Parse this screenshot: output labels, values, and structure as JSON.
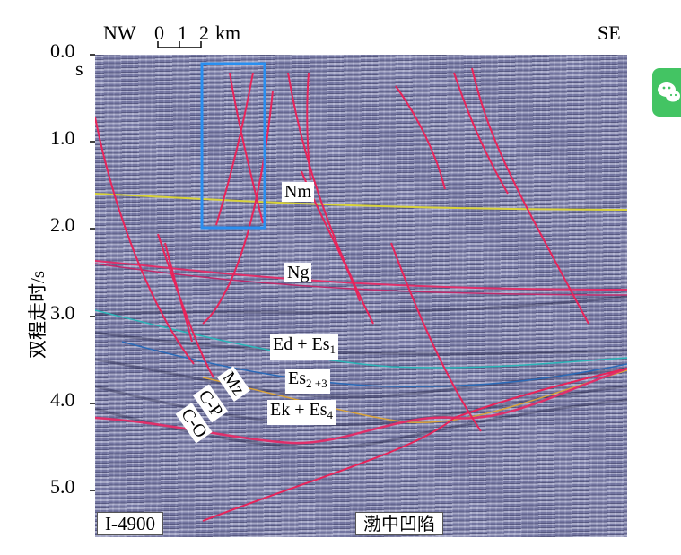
{
  "figure": {
    "direction_left": "NW",
    "direction_right": "SE",
    "scale_ticks": [
      "0",
      "1",
      "2"
    ],
    "scale_unit": "km",
    "y_ticks": [
      "0.0",
      "1.0",
      "2.0",
      "3.0",
      "4.0",
      "5.0"
    ],
    "y_unit_under_zero": "s",
    "y_axis_label": "双程走时/s",
    "line_id": "I-4900",
    "basin_label": "渤中凹陷",
    "labels": {
      "nm": "Nm",
      "ng": "Ng",
      "ed": "Ed + Es",
      "ed_sub": "1",
      "es": "Es",
      "es_sub": "2 +3",
      "ek": "Ek + Es",
      "ek_sub": "4",
      "mz": "Mz",
      "cp": "C-P",
      "co": "C-O"
    }
  },
  "colors": {
    "seismic_background": "#8f92bc",
    "fault": "#e8245a",
    "horizon_nm": "#d8d23a",
    "horizon_ng": "#e0306a",
    "highlight_box": "#2a8ff0",
    "wechat_green": "#43c463"
  }
}
